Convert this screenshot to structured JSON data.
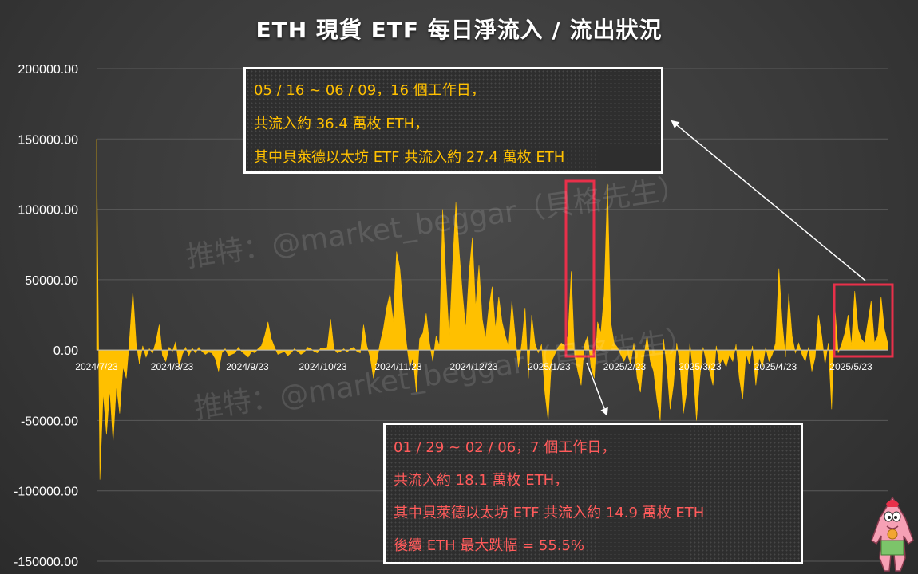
{
  "chart_data": {
    "type": "area",
    "title": "ETH 現貨 ETF 每日淨流入 / 流出狀況",
    "xlabel": "",
    "ylabel": "",
    "ylim": [
      -150000,
      200000
    ],
    "yticks": [
      "200000.00",
      "150000.00",
      "100000.00",
      "50000.00",
      "0.00",
      "-50000.00",
      "-100000.00",
      "-150000.00"
    ],
    "xticks": [
      "2024/7/23",
      "2024/8/23",
      "2024/9/23",
      "2024/10/23",
      "2024/11/23",
      "2024/12/23",
      "2025/1/23",
      "2025/2/23",
      "2025/3/23",
      "2025/4/23",
      "2025/5/23"
    ],
    "grid": true,
    "series": [
      {
        "color": "#ffc000",
        "values": [
          150000,
          -92000,
          -30000,
          -60000,
          -28000,
          -65000,
          -25000,
          -45000,
          -12000,
          -20000,
          8000,
          42000,
          5000,
          -10000,
          3000,
          -5000,
          1000,
          -2000,
          6000,
          18000,
          -4000,
          -8000,
          2000,
          -1000,
          6000,
          -12000,
          -3000,
          2000,
          -4000,
          1500,
          -2000,
          2000,
          -1000,
          -3000,
          -1500,
          -2000,
          -6000,
          -15000,
          -2000,
          1000,
          -4000,
          -3000,
          -2000,
          2000,
          -1000,
          -3000,
          -5000,
          -1000,
          -2000,
          1000,
          3000,
          10000,
          20000,
          8000,
          2000,
          -3000,
          -2000,
          -1000,
          -4000,
          -2000,
          1000,
          -1000,
          -3000,
          -1500,
          2000,
          1000,
          -1000,
          -2000,
          1500,
          1000,
          2000,
          22000,
          1000,
          -2000,
          -1000,
          1000,
          -1500,
          1000,
          2000,
          -1000,
          -2000,
          18000,
          3000,
          -5000,
          -20000,
          -8000,
          5000,
          15000,
          30000,
          40000,
          20000,
          70000,
          58000,
          30000,
          5000,
          -12000,
          -5000,
          -30000,
          8000,
          12000,
          26000,
          5000,
          -8000,
          10000,
          3000,
          100000,
          50000,
          8000,
          60000,
          105000,
          70000,
          40000,
          15000,
          55000,
          80000,
          30000,
          60000,
          22000,
          8000,
          30000,
          45000,
          15000,
          38000,
          20000,
          10000,
          2000,
          35000,
          10000,
          -12000,
          5000,
          30000,
          -20000,
          25000,
          5000,
          -2000,
          4000,
          -30000,
          -50000,
          -8000,
          -3000,
          2000,
          5000,
          3000,
          10000,
          56000,
          -3000,
          -15000,
          -25000,
          4000,
          10000,
          -12000,
          -20000,
          20000,
          12000,
          40000,
          118000,
          20000,
          5000,
          2000,
          -3000,
          -8000,
          -2000,
          -10000,
          5000,
          -20000,
          -30000,
          -5000,
          10000,
          -8000,
          -15000,
          -35000,
          -50000,
          8000,
          -12000,
          -42000,
          -25000,
          5000,
          -10000,
          -45000,
          -30000,
          5000,
          -15000,
          -50000,
          -20000,
          2000,
          -8000,
          -15000,
          -25000,
          3000,
          -10000,
          -6000,
          -12000,
          -3000,
          -8000,
          4000,
          -20000,
          -35000,
          -2000,
          -10000,
          3000,
          -25000,
          -5000,
          -12000,
          2000,
          -8000,
          -3000,
          5000,
          58000,
          20000,
          -5000,
          40000,
          10000,
          -2000,
          5000,
          -3000,
          -8000,
          2000,
          -15000,
          -5000,
          25000,
          10000,
          -10000,
          5000,
          -42000,
          30000,
          -2000,
          4000,
          12000,
          25000,
          3000,
          42000,
          15000,
          8000,
          5000,
          20000,
          35000,
          5000,
          10000,
          38000,
          15000,
          5000
        ]
      }
    ],
    "annotations": [
      {
        "lines": [
          "05 / 16 ~ 06 / 09，16 個工作日，",
          "共流入約 36.4 萬枚 ETH，",
          "其中貝萊德以太坊 ETF 共流入約 27.4 萬枚 ETH"
        ],
        "color": "#ffc000"
      },
      {
        "lines": [
          "01 / 29 ~ 02 / 06，7 個工作日，",
          "共流入約 18.1 萬枚 ETH，",
          "其中貝萊德以太坊 ETF 共流入約 14.9 萬枚 ETH",
          "後續 ETH 最大跌幅 = 55.5%"
        ],
        "color": "#ff5b5b"
      }
    ],
    "highlight_color": "#e8304a"
  },
  "watermarks": [
    "推特：@market_beggar（貝格先生）",
    "推特：@market_beggar（貝格先生）"
  ]
}
